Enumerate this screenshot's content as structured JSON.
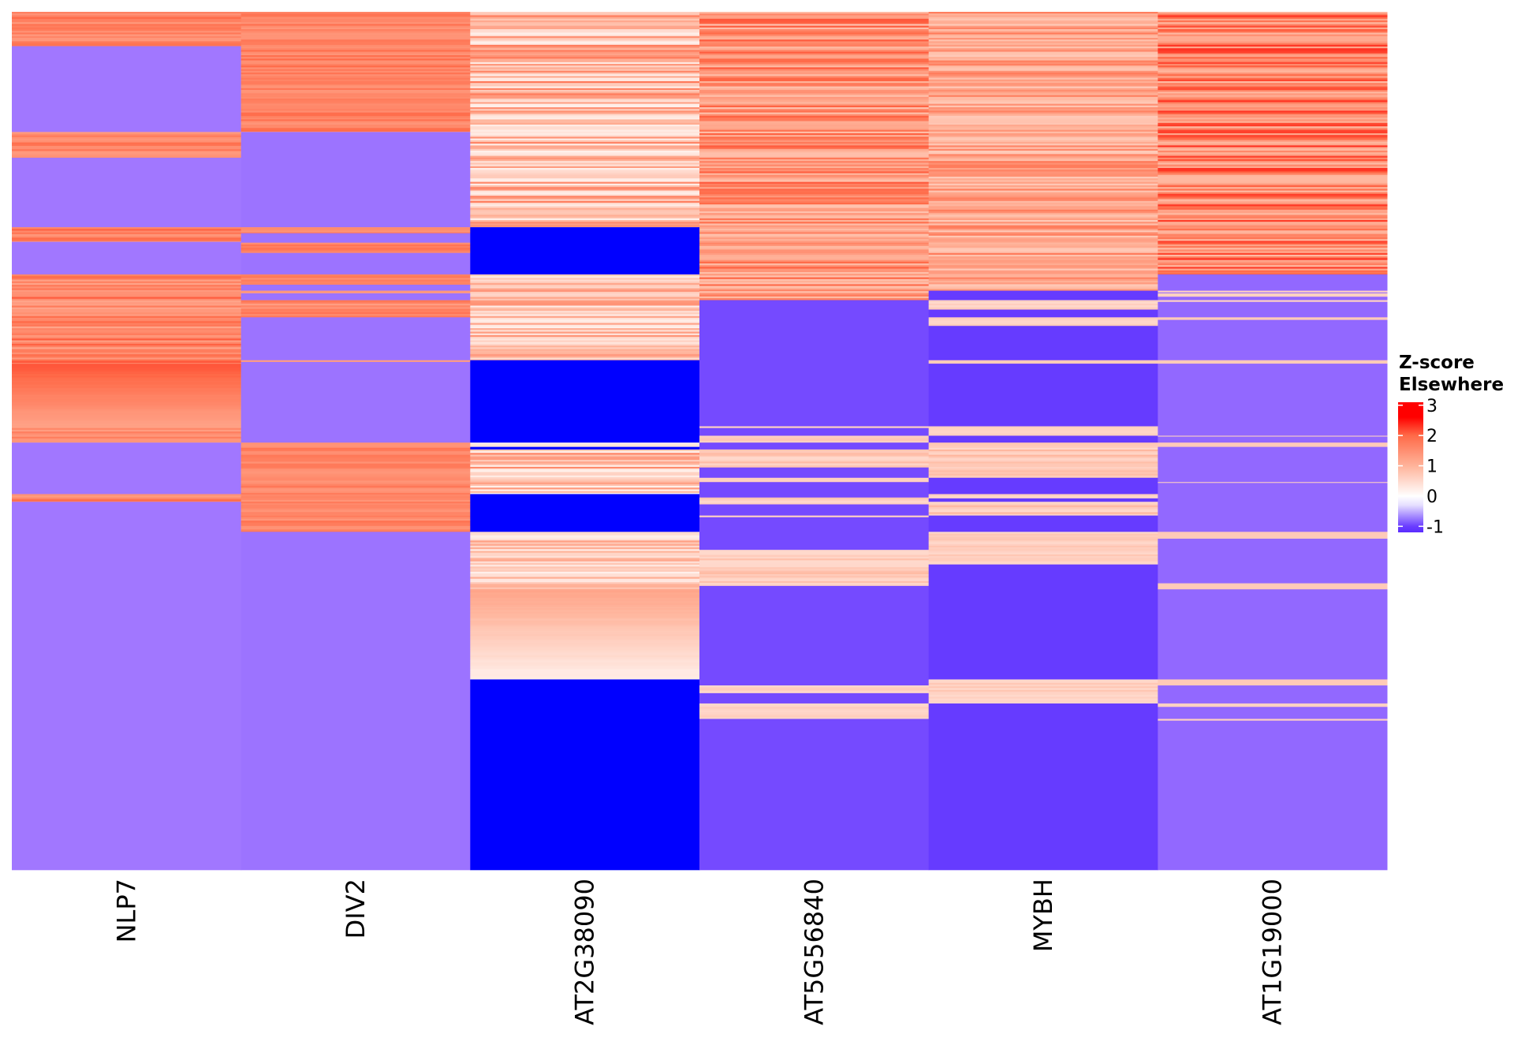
{
  "chart_data": {
    "type": "heatmap",
    "title": "",
    "xlabel": "",
    "ylabel": "",
    "columns": [
      "NLP7",
      "DIV2",
      "AT2G38090",
      "AT5G56840",
      "MYBH",
      "AT1G19000"
    ],
    "row_axis": "row position as fraction of all rows (0 = top, 1 = bottom); row labels not shown",
    "legend": {
      "title_lines": [
        "Z-score",
        "Elsewhere"
      ],
      "ticks": [
        3,
        2,
        1,
        0,
        -1
      ],
      "tick_labels": [
        "3",
        "2",
        "1",
        "0",
        "-1"
      ],
      "range": [
        -1.2,
        3.1
      ],
      "placement": "right",
      "color_stops": [
        {
          "value": -1.2,
          "color": "#5a2cff"
        },
        {
          "value": -1.0,
          "color": "#6033ff"
        },
        {
          "value": 0.0,
          "color": "#ffffff"
        },
        {
          "value": 1.0,
          "color": "#ffb39a"
        },
        {
          "value": 2.0,
          "color": "#ff6a48"
        },
        {
          "value": 3.0,
          "color": "#ff0000"
        }
      ]
    },
    "segments": [
      [
        {
          "from": 0.0,
          "to": 0.04,
          "z_min": 1.3,
          "z_max": 2.0
        },
        {
          "from": 0.04,
          "to": 0.14,
          "z": -0.55
        },
        {
          "from": 0.14,
          "to": 0.17,
          "z_min": 1.3,
          "z_max": 2.0
        },
        {
          "from": 0.17,
          "to": 0.251,
          "z": -0.55
        },
        {
          "from": 0.251,
          "to": 0.268,
          "z_min": 1.3,
          "z_max": 2.1
        },
        {
          "from": 0.268,
          "to": 0.306,
          "z": -0.55
        },
        {
          "from": 0.306,
          "to": 0.41,
          "z_min": 1.2,
          "z_max": 2.2
        },
        {
          "from": 0.41,
          "to": 0.483,
          "z_grad": [
            2.2,
            1.2
          ]
        },
        {
          "from": 0.483,
          "to": 0.502,
          "z_min": 1.2,
          "z_max": 2.1
        },
        {
          "from": 0.502,
          "to": 0.562,
          "z": -0.55
        },
        {
          "from": 0.562,
          "to": 0.571,
          "z_min": 1.3,
          "z_max": 2.0
        },
        {
          "from": 0.571,
          "to": 1.0,
          "z": -0.55
        }
      ],
      [
        {
          "from": 0.0,
          "to": 0.14,
          "z_min": 1.4,
          "z_max": 2.0
        },
        {
          "from": 0.14,
          "to": 0.251,
          "z": -0.58
        },
        {
          "from": 0.251,
          "to": 0.258,
          "z_min": 1.4,
          "z_max": 1.9
        },
        {
          "from": 0.258,
          "to": 0.269,
          "z": -0.58
        },
        {
          "from": 0.269,
          "to": 0.281,
          "z_min": 1.4,
          "z_max": 1.9
        },
        {
          "from": 0.281,
          "to": 0.306,
          "z": -0.58
        },
        {
          "from": 0.306,
          "to": 0.318,
          "z_min": 1.4,
          "z_max": 1.9
        },
        {
          "from": 0.318,
          "to": 0.325,
          "z": -0.58
        },
        {
          "from": 0.325,
          "to": 0.328,
          "z_min": 1.3,
          "z_max": 1.5
        },
        {
          "from": 0.328,
          "to": 0.336,
          "z": -0.58
        },
        {
          "from": 0.336,
          "to": 0.356,
          "z_min": 1.3,
          "z_max": 1.9
        },
        {
          "from": 0.356,
          "to": 0.406,
          "z": -0.58
        },
        {
          "from": 0.406,
          "to": 0.408,
          "z": 1.3
        },
        {
          "from": 0.408,
          "to": 0.502,
          "z": -0.58
        },
        {
          "from": 0.502,
          "to": 0.606,
          "z_min": 1.4,
          "z_max": 1.9
        },
        {
          "from": 0.606,
          "to": 1.0,
          "z": -0.58
        }
      ],
      [
        {
          "from": 0.0,
          "to": 0.251,
          "z_min": 0.2,
          "z_max": 1.8
        },
        {
          "from": 0.251,
          "to": 0.306,
          "z": -1.5
        },
        {
          "from": 0.306,
          "to": 0.406,
          "z_min": 0.2,
          "z_max": 1.5
        },
        {
          "from": 0.406,
          "to": 0.502,
          "z": -1.5
        },
        {
          "from": 0.502,
          "to": 0.507,
          "z_min": 0.2,
          "z_max": 0.6
        },
        {
          "from": 0.507,
          "to": 0.51,
          "z": -1.5
        },
        {
          "from": 0.51,
          "to": 0.562,
          "z_min": 0.2,
          "z_max": 1.7
        },
        {
          "from": 0.562,
          "to": 0.606,
          "z": -1.5
        },
        {
          "from": 0.606,
          "to": 0.673,
          "z_min": 0.2,
          "z_max": 1.3
        },
        {
          "from": 0.673,
          "to": 0.778,
          "z_grad": [
            1.2,
            0.2
          ]
        },
        {
          "from": 0.778,
          "to": 1.0,
          "z": -1.5
        }
      ],
      [
        {
          "from": 0.0,
          "to": 0.336,
          "z_min": 0.8,
          "z_max": 2.2
        },
        {
          "from": 0.336,
          "to": 0.483,
          "z": -0.85
        },
        {
          "from": 0.483,
          "to": 0.485,
          "z": 0.6
        },
        {
          "from": 0.485,
          "to": 0.494,
          "z": -0.85
        },
        {
          "from": 0.494,
          "to": 0.502,
          "z_min": 0.6,
          "z_max": 0.9
        },
        {
          "from": 0.502,
          "to": 0.51,
          "z": -0.85
        },
        {
          "from": 0.51,
          "to": 0.531,
          "z_min": 0.5,
          "z_max": 1.0
        },
        {
          "from": 0.531,
          "to": 0.543,
          "z": -0.85
        },
        {
          "from": 0.543,
          "to": 0.548,
          "z_min": 0.5,
          "z_max": 0.7
        },
        {
          "from": 0.548,
          "to": 0.566,
          "z": -0.85
        },
        {
          "from": 0.566,
          "to": 0.574,
          "z_min": 0.5,
          "z_max": 0.8
        },
        {
          "from": 0.574,
          "to": 0.587,
          "z": -0.85
        },
        {
          "from": 0.587,
          "to": 0.589,
          "z": 0.6
        },
        {
          "from": 0.589,
          "to": 0.627,
          "z": -0.85
        },
        {
          "from": 0.627,
          "to": 0.669,
          "z_min": 0.5,
          "z_max": 1.0
        },
        {
          "from": 0.669,
          "to": 0.785,
          "z": -0.85
        },
        {
          "from": 0.785,
          "to": 0.794,
          "z_min": 0.5,
          "z_max": 0.7
        },
        {
          "from": 0.794,
          "to": 0.806,
          "z": -0.85
        },
        {
          "from": 0.806,
          "to": 0.824,
          "z_min": 0.5,
          "z_max": 0.7
        },
        {
          "from": 0.824,
          "to": 1.0,
          "z": -0.85
        }
      ],
      [
        {
          "from": 0.0,
          "to": 0.325,
          "z_min": 0.7,
          "z_max": 1.8
        },
        {
          "from": 0.325,
          "to": 0.336,
          "z": -0.95
        },
        {
          "from": 0.336,
          "to": 0.347,
          "z_min": 0.5,
          "z_max": 0.8
        },
        {
          "from": 0.347,
          "to": 0.356,
          "z": -0.95
        },
        {
          "from": 0.356,
          "to": 0.366,
          "z_min": 0.5,
          "z_max": 0.7
        },
        {
          "from": 0.366,
          "to": 0.406,
          "z": -0.95
        },
        {
          "from": 0.406,
          "to": 0.41,
          "z": 0.7
        },
        {
          "from": 0.41,
          "to": 0.483,
          "z": -0.95
        },
        {
          "from": 0.483,
          "to": 0.494,
          "z_min": 0.5,
          "z_max": 0.7
        },
        {
          "from": 0.494,
          "to": 0.502,
          "z": -0.95
        },
        {
          "from": 0.502,
          "to": 0.543,
          "z_min": 0.5,
          "z_max": 1.0
        },
        {
          "from": 0.543,
          "to": 0.562,
          "z": -0.95
        },
        {
          "from": 0.562,
          "to": 0.567,
          "z_min": 0.5,
          "z_max": 0.7
        },
        {
          "from": 0.567,
          "to": 0.571,
          "z": -0.95
        },
        {
          "from": 0.571,
          "to": 0.587,
          "z_min": 0.5,
          "z_max": 1.0
        },
        {
          "from": 0.587,
          "to": 0.606,
          "z": -0.95
        },
        {
          "from": 0.606,
          "to": 0.644,
          "z_min": 0.5,
          "z_max": 0.8
        },
        {
          "from": 0.644,
          "to": 0.778,
          "z": -0.95
        },
        {
          "from": 0.778,
          "to": 0.806,
          "z_min": 0.5,
          "z_max": 0.8
        },
        {
          "from": 0.806,
          "to": 1.0,
          "z": -0.95
        }
      ],
      [
        {
          "from": 0.0,
          "to": 0.306,
          "z_min": 0.9,
          "z_max": 2.6
        },
        {
          "from": 0.306,
          "to": 0.325,
          "z": -0.65
        },
        {
          "from": 0.325,
          "to": 0.327,
          "z": 0.6
        },
        {
          "from": 0.327,
          "to": 0.328,
          "z": -0.65
        },
        {
          "from": 0.328,
          "to": 0.332,
          "z": 0.6
        },
        {
          "from": 0.332,
          "to": 0.336,
          "z": -0.65
        },
        {
          "from": 0.336,
          "to": 0.338,
          "z": 0.6
        },
        {
          "from": 0.338,
          "to": 0.356,
          "z": -0.65
        },
        {
          "from": 0.356,
          "to": 0.359,
          "z": 0.7
        },
        {
          "from": 0.359,
          "to": 0.406,
          "z": -0.65
        },
        {
          "from": 0.406,
          "to": 0.41,
          "z": 0.7
        },
        {
          "from": 0.41,
          "to": 0.494,
          "z": -0.65
        },
        {
          "from": 0.494,
          "to": 0.495,
          "z": 0.6
        },
        {
          "from": 0.495,
          "to": 0.502,
          "z": -0.65
        },
        {
          "from": 0.502,
          "to": 0.507,
          "z": 0.7
        },
        {
          "from": 0.507,
          "to": 0.548,
          "z": -0.65
        },
        {
          "from": 0.548,
          "to": 0.549,
          "z": 0.6
        },
        {
          "from": 0.549,
          "to": 0.606,
          "z": -0.65
        },
        {
          "from": 0.606,
          "to": 0.614,
          "z": 0.7
        },
        {
          "from": 0.614,
          "to": 0.666,
          "z": -0.65
        },
        {
          "from": 0.666,
          "to": 0.673,
          "z": 0.7
        },
        {
          "from": 0.673,
          "to": 0.778,
          "z": -0.65
        },
        {
          "from": 0.778,
          "to": 0.785,
          "z": 0.7
        },
        {
          "from": 0.785,
          "to": 0.806,
          "z": -0.65
        },
        {
          "from": 0.806,
          "to": 0.81,
          "z": 0.6
        },
        {
          "from": 0.81,
          "to": 0.824,
          "z": -0.65
        },
        {
          "from": 0.824,
          "to": 0.826,
          "z": 0.6
        },
        {
          "from": 0.826,
          "to": 1.0,
          "z": -0.65
        }
      ]
    ]
  }
}
